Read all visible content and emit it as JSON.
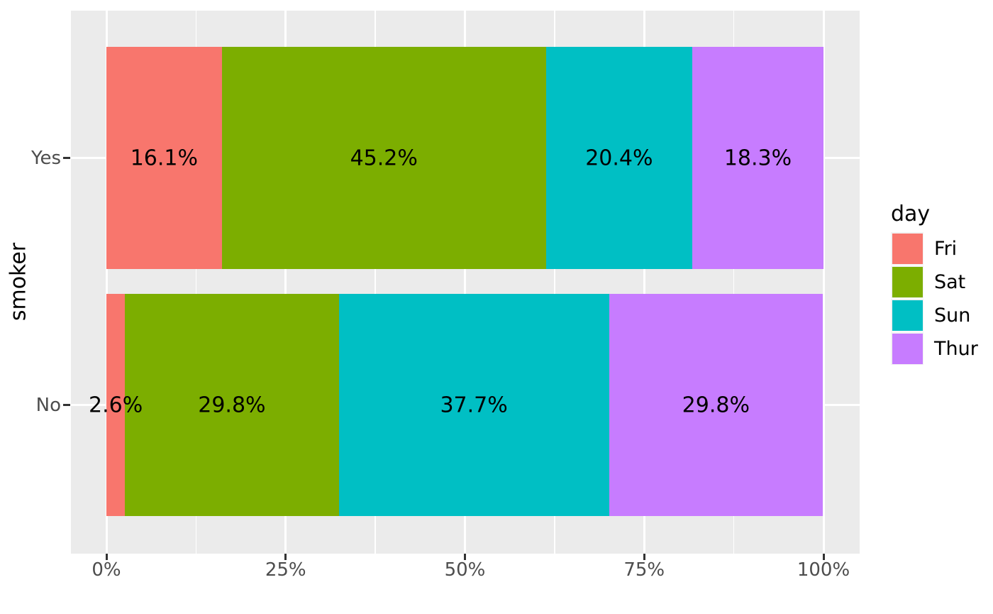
{
  "chart_data": {
    "type": "bar",
    "subtype": "stacked-horizontal-percent",
    "title": "",
    "xlabel": "",
    "ylabel": "smoker",
    "categories": [
      "Yes",
      "No"
    ],
    "series": [
      {
        "name": "Fri",
        "color": "#F8766D",
        "values": [
          16.1,
          2.6
        ],
        "labels": [
          "16.1%",
          "2.6%"
        ]
      },
      {
        "name": "Sat",
        "color": "#7CAE00",
        "values": [
          45.2,
          29.8
        ],
        "labels": [
          "45.2%",
          "29.8%"
        ]
      },
      {
        "name": "Sun",
        "color": "#00BFC4",
        "values": [
          20.4,
          37.7
        ],
        "labels": [
          "20.4%",
          "37.7%"
        ]
      },
      {
        "name": "Thur",
        "color": "#C77CFF",
        "values": [
          18.3,
          29.8
        ],
        "labels": [
          "18.3%",
          "29.8%"
        ]
      }
    ],
    "x_axis": {
      "range": [
        0,
        100
      ],
      "ticks": [
        {
          "label": "0%",
          "value": 0
        },
        {
          "label": "25%",
          "value": 25
        },
        {
          "label": "50%",
          "value": 50
        },
        {
          "label": "75%",
          "value": 75
        },
        {
          "label": "100%",
          "value": 100
        }
      ],
      "minor_ticks": [
        12.5,
        37.5,
        62.5,
        87.5
      ]
    },
    "y_axis": {
      "ticks": [
        "Yes",
        "No"
      ]
    },
    "legend": {
      "title": "day",
      "position": "right",
      "entries": [
        "Fri",
        "Sat",
        "Sun",
        "Thur"
      ]
    },
    "style": {
      "figure_background": "#FFFFFF",
      "panel_background": "#EBEBEB",
      "grid_color": "#FFFFFF",
      "axis_text_color": "#4D4D4D",
      "tick_mark_color": "#333333",
      "bar_label_color": "#000000",
      "legend_key_background": "#F2F2F2"
    }
  }
}
